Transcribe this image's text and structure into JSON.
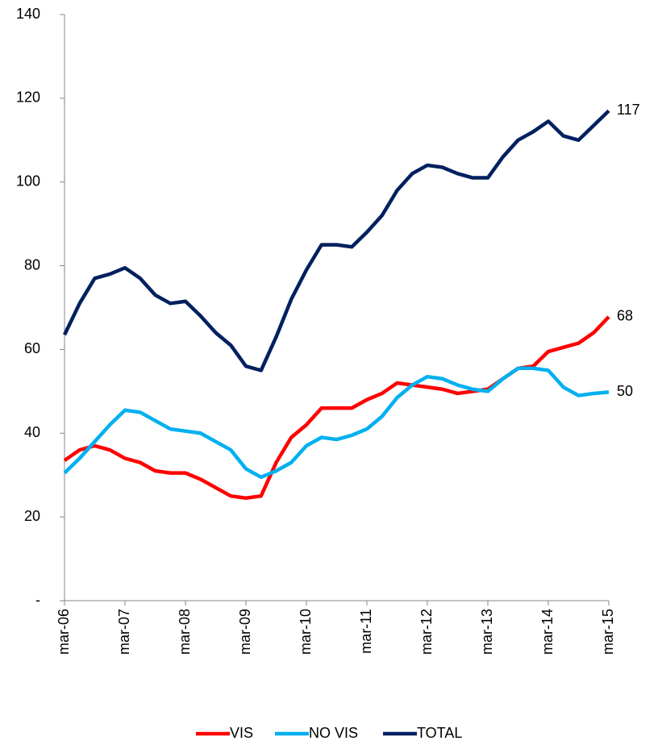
{
  "chart_data": {
    "type": "line",
    "categories": [
      "mar-06",
      null,
      null,
      null,
      "mar-07",
      null,
      null,
      null,
      "mar-08",
      null,
      null,
      null,
      "mar-09",
      null,
      null,
      null,
      "mar-10",
      null,
      null,
      null,
      "mar-11",
      null,
      null,
      null,
      "mar-12",
      null,
      null,
      null,
      "mar-13",
      null,
      null,
      null,
      "mar-14",
      null,
      null,
      null,
      "mar-15"
    ],
    "series": [
      {
        "name": "VIS",
        "color": "#ff0000",
        "end_label": 68,
        "values": [
          33.5,
          36,
          37,
          36,
          34,
          33,
          31,
          30.5,
          30.5,
          29,
          27,
          25,
          24.5,
          25,
          33,
          39,
          42,
          46,
          46,
          46,
          48,
          49.5,
          52,
          51.5,
          51,
          50.5,
          49.5,
          50,
          50.5,
          53,
          55.5,
          56,
          59.5,
          60.5,
          61.5,
          64,
          67.8
        ]
      },
      {
        "name": "NO VIS",
        "color": "#00b0f0",
        "end_label": 50,
        "values": [
          30.5,
          34,
          38,
          42,
          45.5,
          45,
          43,
          41,
          40.5,
          40,
          38,
          36,
          31.5,
          29.5,
          31,
          33,
          37,
          39,
          38.5,
          39.5,
          41,
          44,
          48.5,
          51.5,
          53.5,
          53,
          51.5,
          50.5,
          50,
          53,
          55.5,
          55.5,
          55,
          51,
          49,
          49.5,
          49.8
        ]
      },
      {
        "name": "TOTAL",
        "color": "#002060",
        "end_label": 117,
        "values": [
          63.5,
          71,
          77,
          78,
          79.5,
          77,
          73,
          71,
          71.5,
          68,
          64,
          61,
          56,
          55,
          63,
          72,
          79,
          85,
          85,
          84.5,
          88,
          92,
          98,
          102,
          104,
          103.5,
          102,
          101,
          101,
          106,
          110,
          112,
          114.5,
          111,
          110,
          113.5,
          117
        ]
      }
    ],
    "ylim": [
      0,
      140
    ],
    "yticks": [
      {
        "value": 0,
        "label": "-"
      },
      20,
      40,
      60,
      80,
      100,
      120,
      140
    ]
  }
}
